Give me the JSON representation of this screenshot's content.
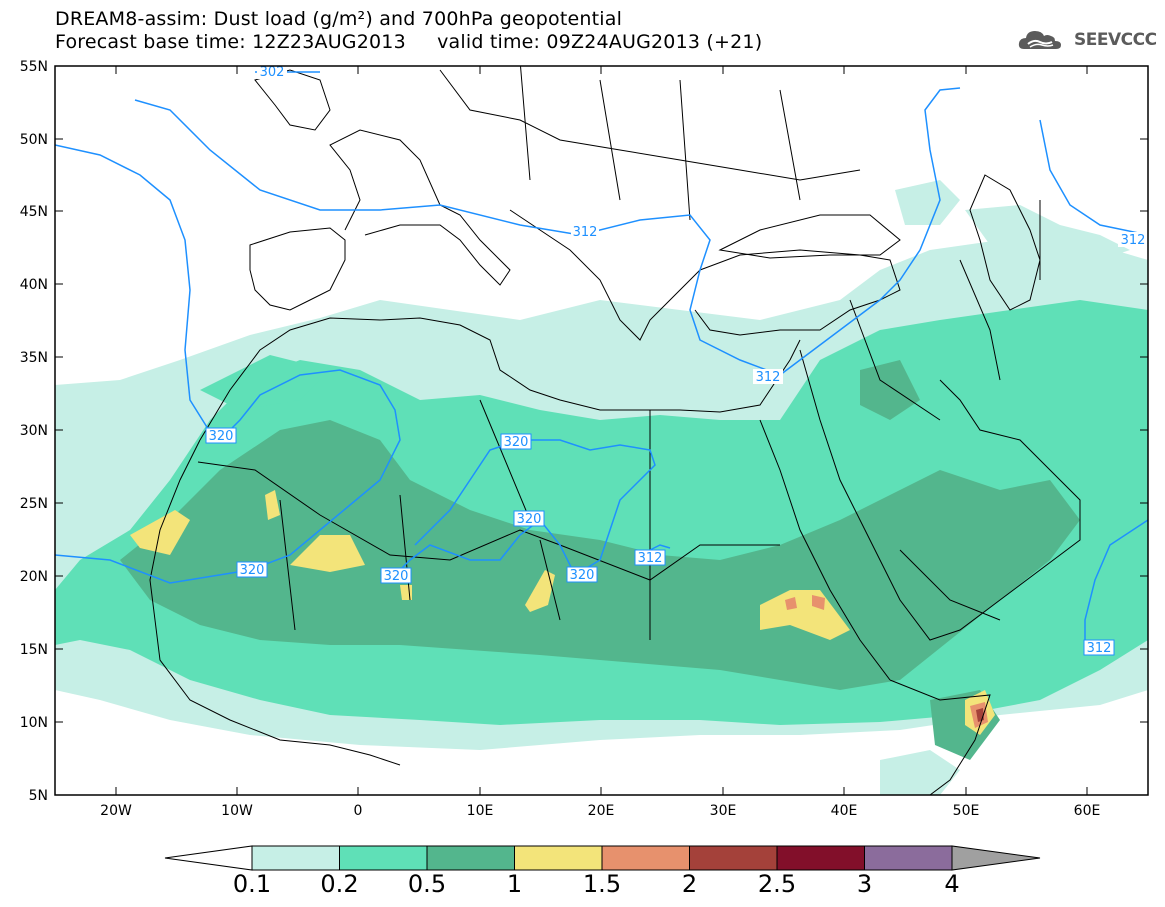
{
  "title_line1": "DREAM8-assim: Dust load (g/m²) and 700hPa geopotential",
  "title_line2": "Forecast base time: 12Z23AUG2013     valid time: 09Z24AUG2013 (+21)",
  "logo_text": "SEEVCCC",
  "logo_icon": "cloud-logo-icon",
  "lat_labels": [
    "55N",
    "50N",
    "45N",
    "40N",
    "35N",
    "30N",
    "25N",
    "20N",
    "15N",
    "10N",
    "5N"
  ],
  "lon_labels": [
    "20W",
    "10W",
    "0",
    "10E",
    "20E",
    "30E",
    "40E",
    "50E",
    "60E"
  ],
  "contour_labels": [
    "302",
    "312",
    "312",
    "312",
    "320",
    "320",
    "320",
    "320",
    "320",
    "320",
    "312"
  ],
  "colorbar": {
    "labels": [
      "0.1",
      "0.2",
      "0.5",
      "1",
      "1.5",
      "2",
      "2.5",
      "3",
      "4"
    ],
    "colors": [
      "#c6efe6",
      "#5fe0b7",
      "#53b68d",
      "#f3e47a",
      "#e7916d",
      "#a4413a",
      "#820f2a",
      "#8b6c9c"
    ],
    "under_color": "#ffffff",
    "over_color": "#a0a0a0"
  },
  "contour_color": "#1e90ff",
  "coast_color": "#000000"
}
